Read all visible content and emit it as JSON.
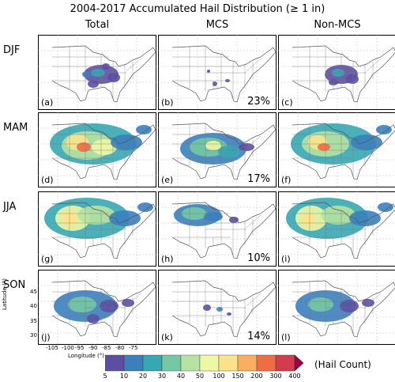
{
  "title": "2004-2017 Accumulated Hail Distribution (≥ 1 in)",
  "columns": [
    "Total",
    "MCS",
    "Non-MCS"
  ],
  "rows": [
    {
      "season": "DJF",
      "panels": [
        "(a)",
        "(b)",
        "(c)"
      ],
      "mcs_share": "23%"
    },
    {
      "season": "MAM",
      "panels": [
        "(d)",
        "(e)",
        "(f)"
      ],
      "mcs_share": "17%"
    },
    {
      "season": "JJA",
      "panels": [
        "(g)",
        "(h)",
        "(i)"
      ],
      "mcs_share": "10%"
    },
    {
      "season": "SON",
      "panels": [
        "(j)",
        "(k)",
        "(l)"
      ],
      "mcs_share": "14%"
    }
  ],
  "axes": {
    "ylabel": "Latitude (°)",
    "xlabel": "Longitude (°)",
    "lat_ticks": [
      "45",
      "40",
      "35",
      "30"
    ],
    "lon_ticks": [
      "-105",
      "-100",
      "-95",
      "-90",
      "-85",
      "-80",
      "-75"
    ]
  },
  "colorbar": {
    "ticks": [
      "5",
      "10",
      "20",
      "30",
      "40",
      "50",
      "100",
      "150",
      "200",
      "300",
      "400"
    ],
    "colors": [
      "#5c4fa2",
      "#3b7fbc",
      "#37a7b2",
      "#75c8a4",
      "#b7e2a1",
      "#eef7a3",
      "#fde28c",
      "#fbad61",
      "#f06c44",
      "#d33c4e",
      "#9e0142"
    ],
    "unit": "(Hail Count)"
  }
}
